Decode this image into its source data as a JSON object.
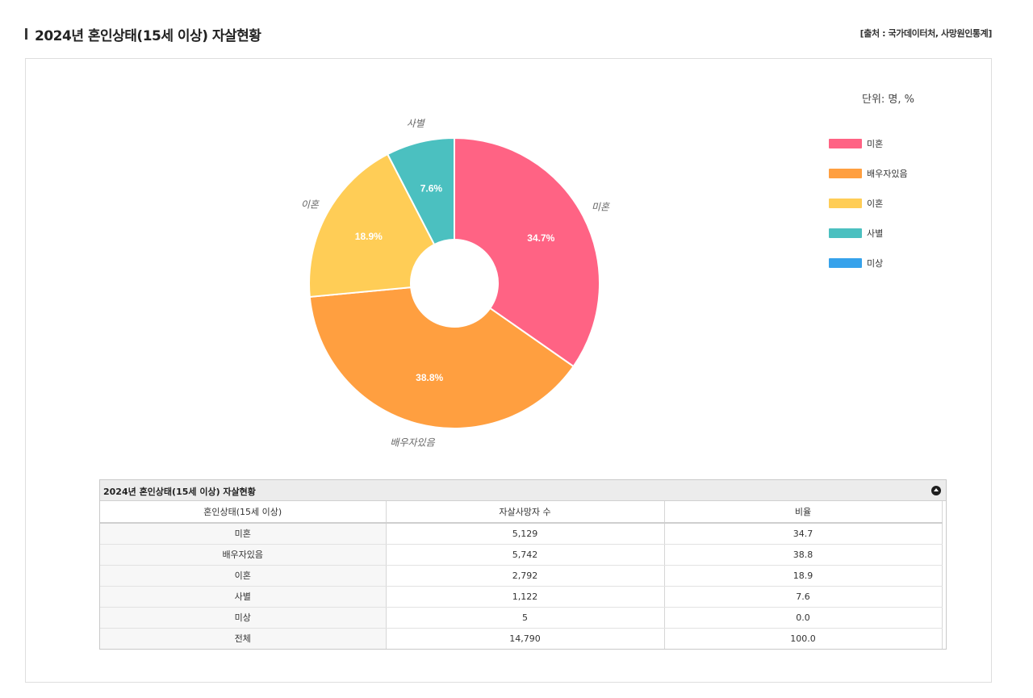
{
  "page": {
    "title": "2024년 혼인상태(15세 이상) 자살현황",
    "source": "[출처 : 국가데이터처, 사망원인통계]",
    "unit": "단위: 명, %"
  },
  "chart_data": {
    "type": "pie",
    "style": "donut",
    "categories": [
      "미혼",
      "배우자있음",
      "이혼",
      "사별",
      "미상"
    ],
    "values": [
      34.7,
      38.8,
      18.9,
      7.6,
      0.0
    ],
    "value_labels": [
      "34.7%",
      "38.8%",
      "18.9%",
      "7.6%",
      ""
    ],
    "colors": [
      "#ff6384",
      "#ff9f40",
      "#ffcd56",
      "#4bc0c0",
      "#36a2eb"
    ],
    "legend": "right",
    "title": ""
  },
  "legend": {
    "items": [
      {
        "label": "미혼",
        "color": "#ff6384"
      },
      {
        "label": "배우자있음",
        "color": "#ff9f40"
      },
      {
        "label": "이혼",
        "color": "#ffcd56"
      },
      {
        "label": "사별",
        "color": "#4bc0c0"
      },
      {
        "label": "미상",
        "color": "#36a2eb"
      }
    ]
  },
  "table": {
    "title": "2024년 혼인상태(15세 이상) 자살현황",
    "collapse_icon": "collapse-up-icon",
    "headers": [
      "혼인상태(15세 이상)",
      "자살사망자 수",
      "비율"
    ],
    "rows": [
      [
        "미혼",
        "5,129",
        "34.7"
      ],
      [
        "배우자있음",
        "5,742",
        "38.8"
      ],
      [
        "이혼",
        "2,792",
        "18.9"
      ],
      [
        "사별",
        "1,122",
        "7.6"
      ],
      [
        "미상",
        "5",
        "0.0"
      ],
      [
        "전체",
        "14,790",
        "100.0"
      ]
    ]
  }
}
